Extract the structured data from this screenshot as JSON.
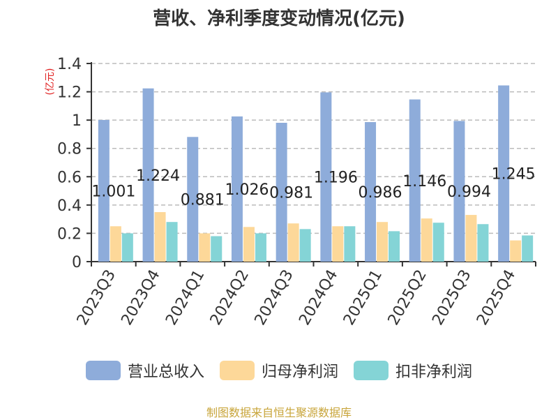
{
  "chart_data": {
    "type": "bar",
    "title": "营收、净利季度变动情况(亿元)",
    "ylabel": "(亿元)",
    "xlabel": "",
    "ylim": [
      0,
      1.4
    ],
    "yticks": [
      "0",
      "0.2",
      "0.4",
      "0.6",
      "0.8",
      "1",
      "1.2",
      "1.4"
    ],
    "categories": [
      "2023Q3",
      "2023Q4",
      "2024Q1",
      "2024Q2",
      "2024Q3",
      "2024Q4",
      "2025Q1",
      "2025Q2",
      "2025Q3",
      "2025Q4"
    ],
    "series": [
      {
        "name": "营业总收入",
        "color": "#8eacda",
        "values": [
          1.001,
          1.224,
          0.881,
          1.026,
          0.981,
          1.196,
          0.986,
          1.146,
          0.994,
          1.245
        ],
        "labels": [
          "1.001",
          "1.224",
          "0.881",
          "1.026",
          "0.981",
          "1.196",
          "0.986",
          "1.146",
          "0.994",
          "1.245"
        ]
      },
      {
        "name": "归母净利润",
        "color": "#fdd899",
        "values": [
          0.25,
          0.35,
          0.2,
          0.245,
          0.27,
          0.25,
          0.28,
          0.305,
          0.33,
          0.15
        ]
      },
      {
        "name": "扣非净利润",
        "color": "#84d4d6",
        "values": [
          0.2,
          0.28,
          0.18,
          0.2,
          0.23,
          0.25,
          0.215,
          0.275,
          0.265,
          0.185
        ]
      }
    ],
    "grid": true,
    "legend_position": "bottom"
  },
  "source_text": "制图数据来自恒生聚源数据库"
}
